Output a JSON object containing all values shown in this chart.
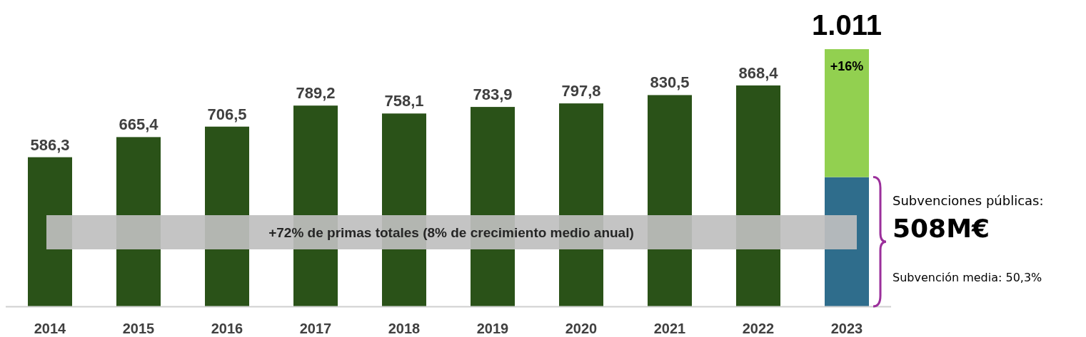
{
  "chart_data": {
    "type": "bar",
    "stacked": true,
    "categories": [
      "2014",
      "2015",
      "2016",
      "2017",
      "2018",
      "2019",
      "2020",
      "2021",
      "2022",
      "2023"
    ],
    "series": [
      {
        "color": "#2a5218",
        "values": [
          586.3,
          665.4,
          706.5,
          789.2,
          758.1,
          783.9,
          797.8,
          830.5,
          868.4,
          null
        ],
        "value_labels": [
          "586,3",
          "665,4",
          "706,5",
          "789,2",
          "758,1",
          "783,9",
          "797,8",
          "830,5",
          "868,4",
          null
        ]
      },
      {
        "color": "#2f6d8c",
        "values": [
          null,
          null,
          null,
          null,
          null,
          null,
          null,
          null,
          null,
          508
        ]
      },
      {
        "color": "#92d050",
        "values": [
          null,
          null,
          null,
          null,
          null,
          null,
          null,
          null,
          null,
          503
        ]
      }
    ],
    "totals": [
      null,
      null,
      null,
      null,
      null,
      null,
      null,
      null,
      null,
      "1.011"
    ],
    "annotations": [
      "+72% de primas totales (8% de crecimiento medio anual)",
      "Subvenciones públicas:",
      "508M€",
      "Subvención media: 50,3%",
      "+16%"
    ]
  }
}
